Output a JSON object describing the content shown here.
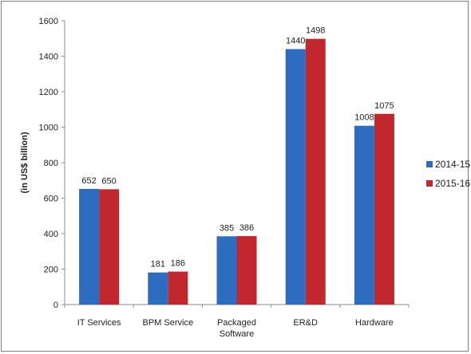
{
  "chart_data": {
    "type": "bar",
    "title": "",
    "xlabel": "",
    "ylabel": "(in US$ billion)",
    "ylim": [
      0,
      1600
    ],
    "yticks": [
      0,
      200,
      400,
      600,
      800,
      1000,
      1200,
      1400,
      1600
    ],
    "grid": false,
    "legend_position": "right",
    "categories": [
      [
        "IT Services"
      ],
      [
        "BPM Service"
      ],
      [
        "Packaged",
        "Software"
      ],
      [
        "ER&D"
      ],
      [
        "Hardware"
      ]
    ],
    "series": [
      {
        "name": "2014-15",
        "color": "#2e6cc0",
        "values": [
          652,
          181,
          385,
          1440,
          1008
        ]
      },
      {
        "name": "2015-16",
        "color": "#c0282d",
        "values": [
          650,
          186,
          386,
          1498,
          1075
        ]
      }
    ]
  }
}
